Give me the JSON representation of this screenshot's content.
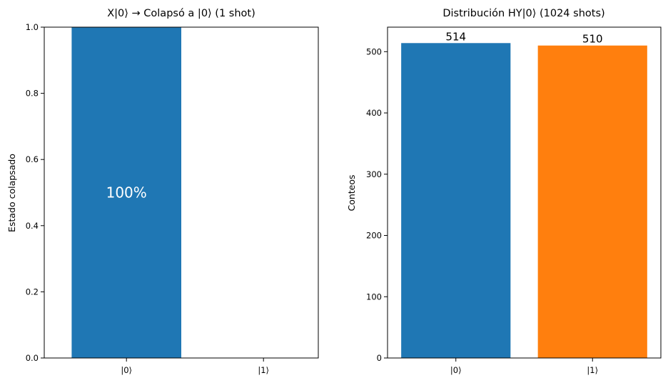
{
  "chart_data": [
    {
      "type": "bar",
      "title": "X|0⟩ → Colapsó a |0⟩ (1 shot)",
      "xlabel": "",
      "ylabel": "Estado colapsado",
      "categories": [
        "|0⟩",
        "|1⟩"
      ],
      "values": [
        1,
        0
      ],
      "ylim": [
        0,
        1
      ],
      "yticks": [
        0.0,
        0.2,
        0.4,
        0.6,
        0.8,
        1.0
      ],
      "ytick_labels": [
        "0.0",
        "0.2",
        "0.4",
        "0.6",
        "0.8",
        "1.0"
      ],
      "bar_colors": [
        "#1f77b4",
        "#1f77b4"
      ],
      "annotation": {
        "text": "100%",
        "category": "|0⟩",
        "y": 0.5,
        "color": "#ffffff"
      },
      "grid": false
    },
    {
      "type": "bar",
      "title": "Distribución HY|0⟩ (1024 shots)",
      "xlabel": "",
      "ylabel": "Conteos",
      "categories": [
        "|0⟩",
        "|1⟩"
      ],
      "values": [
        514,
        510
      ],
      "data_labels": [
        "514",
        "510"
      ],
      "ylim": [
        0,
        540
      ],
      "yticks": [
        0,
        100,
        200,
        300,
        400,
        500
      ],
      "ytick_labels": [
        "0",
        "100",
        "200",
        "300",
        "400",
        "500"
      ],
      "bar_colors": [
        "#1f77b4",
        "#ff7f0e"
      ],
      "grid": false
    }
  ]
}
